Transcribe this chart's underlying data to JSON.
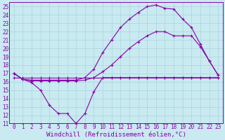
{
  "background_color": "#c8eaf0",
  "grid_color": "#b0d8e0",
  "line_color": "#8800aa",
  "xlabel": "Windchill (Refroidissement éolien,°C)",
  "xlabel_fontsize": 6.5,
  "tick_fontsize": 5.5,
  "xlim": [
    -0.5,
    23.5
  ],
  "ylim": [
    11,
    25.5
  ],
  "yticks": [
    11,
    12,
    13,
    14,
    15,
    16,
    17,
    18,
    19,
    20,
    21,
    22,
    23,
    24,
    25
  ],
  "xticks": [
    0,
    1,
    2,
    3,
    4,
    5,
    6,
    7,
    8,
    9,
    10,
    11,
    12,
    13,
    14,
    15,
    16,
    17,
    18,
    19,
    20,
    21,
    22,
    23
  ],
  "series1_x": [
    0,
    1,
    2,
    3,
    4,
    5,
    6,
    7,
    8,
    9,
    10,
    11,
    12,
    13,
    14,
    15,
    16,
    17,
    18,
    19,
    20,
    21,
    22,
    23
  ],
  "series1_y": [
    17.0,
    16.3,
    15.9,
    15.0,
    13.2,
    12.2,
    12.2,
    11.0,
    12.2,
    14.8,
    16.5,
    16.5,
    16.5,
    16.5,
    16.5,
    16.5,
    16.5,
    16.5,
    16.5,
    16.5,
    16.5,
    16.5,
    16.5,
    16.5
  ],
  "series2_x": [
    0,
    1,
    2,
    3,
    4,
    5,
    6,
    7,
    8,
    9,
    10,
    11,
    12,
    13,
    14,
    15,
    16,
    17,
    18,
    19,
    20,
    21,
    22,
    23
  ],
  "series2_y": [
    17.0,
    16.3,
    16.1,
    16.1,
    16.1,
    16.1,
    16.1,
    16.1,
    16.2,
    16.5,
    17.2,
    18.0,
    19.0,
    20.0,
    20.8,
    21.5,
    22.0,
    22.0,
    21.5,
    21.5,
    21.5,
    20.2,
    18.5,
    16.8
  ],
  "series3_x": [
    0,
    1,
    2,
    3,
    4,
    5,
    6,
    7,
    8,
    9,
    10,
    11,
    12,
    13,
    14,
    15,
    16,
    17,
    18,
    19,
    20,
    21,
    22,
    23
  ],
  "series3_y": [
    17.0,
    16.3,
    16.2,
    16.2,
    16.2,
    16.2,
    16.2,
    16.2,
    16.5,
    17.5,
    19.5,
    21.0,
    22.5,
    23.5,
    24.3,
    25.0,
    25.2,
    24.8,
    24.7,
    23.5,
    22.5,
    20.5,
    18.5,
    16.8
  ],
  "series4_x": [
    0,
    1,
    2,
    3,
    4,
    5,
    6,
    7,
    8,
    9,
    10,
    11,
    12,
    13,
    14,
    15,
    16,
    17,
    18,
    19,
    20,
    21,
    22,
    23
  ],
  "series4_y": [
    16.5,
    16.5,
    16.5,
    16.5,
    16.5,
    16.5,
    16.5,
    16.5,
    16.5,
    16.5,
    16.5,
    16.5,
    16.5,
    16.5,
    16.5,
    16.5,
    16.5,
    16.5,
    16.5,
    16.5,
    16.5,
    16.5,
    16.5,
    16.5
  ]
}
